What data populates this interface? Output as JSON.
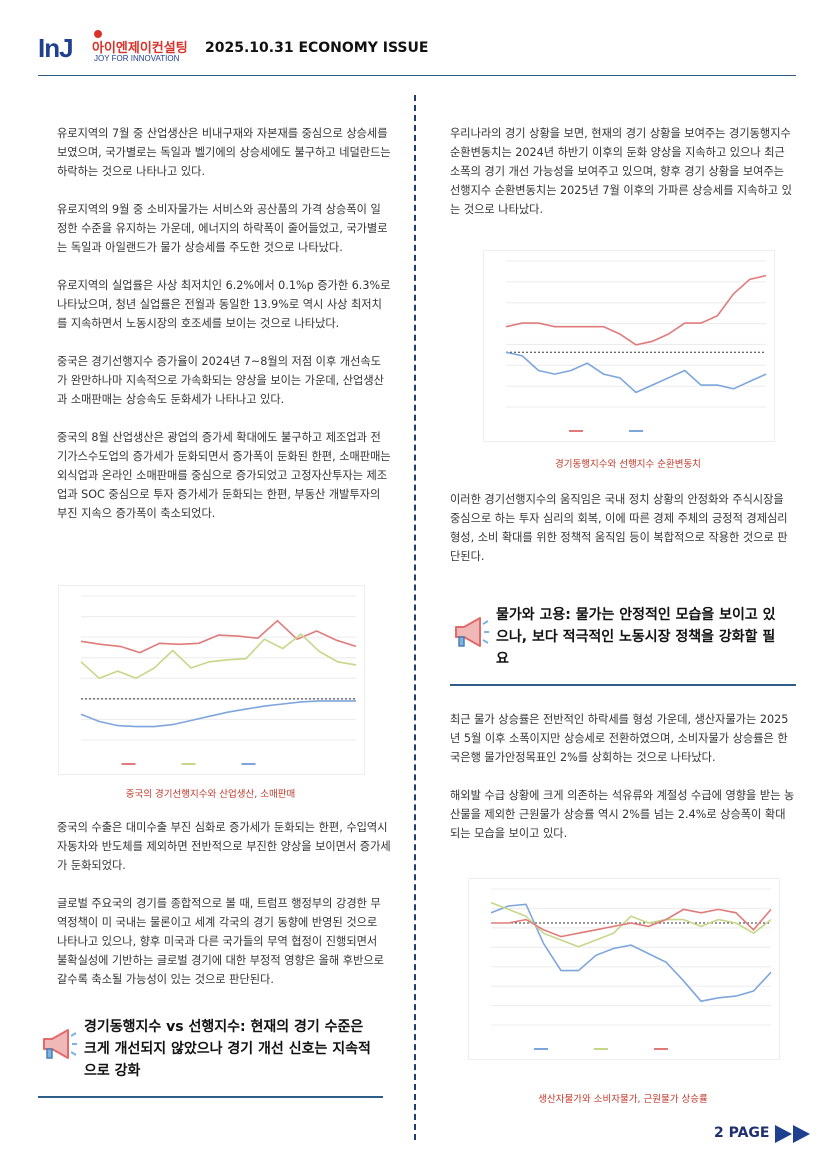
{
  "header": {
    "logo_mark": "InJ",
    "logo_name": "아이엔제이컨설팅",
    "logo_slogan": "JOY FOR INNOVATION",
    "issue_title": "2025.10.31 ECONOMY ISSUE"
  },
  "left_column": {
    "paragraphs": [
      "유로지역의 7월 중 산업생산은 비내구재와 자본재를 중심으로 상승세를 보였으며, 국가별로는 독일과 벨기에의 상승세에도 불구하고 네덜란드는 하락하는 것으로 나타나고 있다.",
      "유로지역의 9월 중 소비자물가는 서비스와 공산품의 가격 상승폭이 일정한 수준을 유지하는 가운데, 에너지의 하락폭이 줄어들었고, 국가별로는 독일과 아일랜드가 물가 상승세를 주도한 것으로 나타났다.",
      "유로지역의 실업률은 사상 최저치인 6.2%에서 0.1%p 증가한 6.3%로 나타났으며, 청년 실업률은 전월과 동일한 13.9%로 역시 사상 최저치를 지속하면서 노동시장의 호조세를 보이는 것으로 나타났다.",
      "중국은 경기선행지수 증가율이 2024년 7~8월의 저점 이후 개선속도가 완만하나마 지속적으로 가속화되는 양상을 보이는 가운데, 산업생산과 소매판매는 상승속도 둔화세가 나타나고 있다.",
      "중국의 8월 산업생산은 광업의 증가세 확대에도 불구하고 제조업과 전기가스수도업의 증가세가 둔화되면서 증가폭이 둔화된 한편, 소매판매는 외식업과 온라인 소매판매를 중심으로 증가되었고 고정자산투자는 제조업과 SOC 중심으로 투자 증가세가 둔화되는 한편, 부동산 개발투자의 부진 지속으 증가폭이 축소되었다."
    ],
    "figure_caption": "중국의 경기선행지수와 산업생산, 소매판매",
    "paragraphs2": [
      "중국의 수출은 대미수출 부진 심화로 증가세가 둔화되는 한편, 수입역시 자동차와 반도체를 제외하면 전반적으로 부진한 양상을 보이면서 증가세가 둔화되었다.",
      "글로벌 주요국의 경기를 종합적으로 볼 때, 트럼프 행정부의 강경한 무역정책이 미 국내는 물론이고 세계 각국의 경기 동향에 반영된 것으로 나타나고 있으나, 향후 미국과 다른 국가들의 무역 협정이 진행되면서 불확실성에 기반하는 글로벌 경기에 대한 부정적 영향은 올해 후반으로 갈수록 축소될 가능성이 있는 것으로 판단된다."
    ],
    "section_heading": "경기동행지수 vs 선행지수: 현재의 경기 수준은 크게 개선되지 않았으나 경기 개선 신호는 지속적으로 강화"
  },
  "right_column": {
    "paragraphs": [
      "우리나라의 경기 상황을 보면, 현재의 경기 상황을 보여주는 경기동행지수 순환변동치는 2024년 하반기 이후의 둔화 양상을 지속하고 있으나 최근 소폭의 경기 개선 가능성을 보여주고 있으며, 향후 경기 상황을 보여주는 선행지수 순환변동치는 2025년 7월 이후의 가파른 상승세를 지속하고 있는 것으로 나타났다."
    ],
    "figure_caption": "경기동행지수와 선행지수 순환변동치",
    "paragraphs2": [
      "이러한 경기선행지수의 움직임은 국내 정치 상황의 안정화와 주식시장을 중심으로 하는 투자 심리의 회복, 이에 따른 경제 주체의 긍정적 경제심리 형성, 소비 확대를 위한 정책적 움직임 등이 복합적으로 작용한 것으로 판단된다."
    ],
    "section_heading": "물가와 고용: 물가는 안정적인 모습을 보이고 있으나, 보다 적극적인 노동시장 정책을 강화할 필요",
    "paragraphs3": [
      "최근 물가 상승률은 전반적인 하락세를 형성 가운데, 생산자물가는 2025년 5월 이후 소폭이지만 상승세로 전환하였으며, 소비자물가 상승률은 한국은행 물가안정목표인 2%를 상회하는 것으로 나타났다.",
      "해외발 수급 상황에 크게 의존하는 석유류와 계절성 수급에  영향을 받는 농산물을 제외한 근원물가 상승률 역시 2%를 넘는 2.4%로 상승폭이 확대되는 모습을 보이고 있다."
    ],
    "figure2_caption": "생산자물가와 소비자물가, 근원물가 상승률"
  },
  "footer": {
    "page_label": "2 PAGE"
  },
  "colors": {
    "accent_blue": "#2f5d8a",
    "caption_red": "#c0392b",
    "series_blue": "#7ea6dc",
    "series_red": "#e07b7b",
    "series_green": "#c5d88a"
  },
  "chart_data": [
    {
      "type": "line",
      "title": "",
      "series": [
        {
          "name": "",
          "color": "#e07b7b",
          "values": [
            0.56,
            0.53,
            0.51,
            0.45,
            0.54,
            0.53,
            0.54,
            0.62,
            0.61,
            0.59,
            0.76,
            0.58,
            0.66,
            0.57,
            0.51
          ]
        },
        {
          "name": "",
          "color": "#c5d88a",
          "values": [
            0.36,
            0.2,
            0.27,
            0.2,
            0.3,
            0.47,
            0.3,
            0.36,
            0.38,
            0.39,
            0.58,
            0.49,
            0.63,
            0.46,
            0.36,
            0.33
          ]
        },
        {
          "name": "",
          "color": "#7ea6dc",
          "values": [
            -0.15,
            -0.22,
            -0.26,
            -0.27,
            -0.27,
            -0.25,
            -0.21,
            -0.17,
            -0.13,
            -0.1,
            -0.07,
            -0.05,
            -0.03,
            -0.02,
            -0.02,
            -0.02
          ]
        }
      ],
      "ylim": [
        -0.4,
        1.0
      ]
    },
    {
      "type": "line",
      "title": "",
      "series": [
        {
          "name": "",
          "color": "#e07b7b",
          "values": [
            100.7,
            100.8,
            100.8,
            100.7,
            100.7,
            100.7,
            100.7,
            100.5,
            100.2,
            100.3,
            100.5,
            100.8,
            100.8,
            101.0,
            101.6,
            102.0,
            102.1
          ]
        },
        {
          "name": "",
          "color": "#7ea6dc",
          "values": [
            100.0,
            99.9,
            99.5,
            99.4,
            99.5,
            99.7,
            99.4,
            99.3,
            98.9,
            99.1,
            99.3,
            99.5,
            99.1,
            99.1,
            99.0,
            99.2,
            99.4
          ]
        }
      ],
      "ylim": [
        98.5,
        102.5
      ]
    },
    {
      "type": "line",
      "title": "",
      "series": [
        {
          "name": "",
          "color": "#7ea6dc",
          "values": [
            2.3,
            2.5,
            2.55,
            1.4,
            0.6,
            0.6,
            1.05,
            1.25,
            1.35,
            1.1,
            0.85,
            0.3,
            -0.3,
            -0.2,
            -0.15,
            0.0,
            0.55
          ]
        },
        {
          "name": "",
          "color": "#c5d88a",
          "values": [
            2.6,
            2.4,
            2.2,
            1.7,
            1.5,
            1.3,
            1.5,
            1.7,
            2.2,
            2.0,
            2.1,
            2.1,
            1.9,
            2.1,
            2.0,
            1.7,
            2.1
          ]
        },
        {
          "name": "",
          "color": "#e07b7b",
          "values": [
            2.0,
            2.0,
            2.1,
            1.8,
            1.6,
            1.7,
            1.8,
            1.9,
            2.0,
            1.9,
            2.1,
            2.4,
            2.3,
            2.4,
            2.3,
            1.8,
            2.4
          ]
        }
      ],
      "ylim": [
        -1.0,
        3.0
      ]
    }
  ]
}
